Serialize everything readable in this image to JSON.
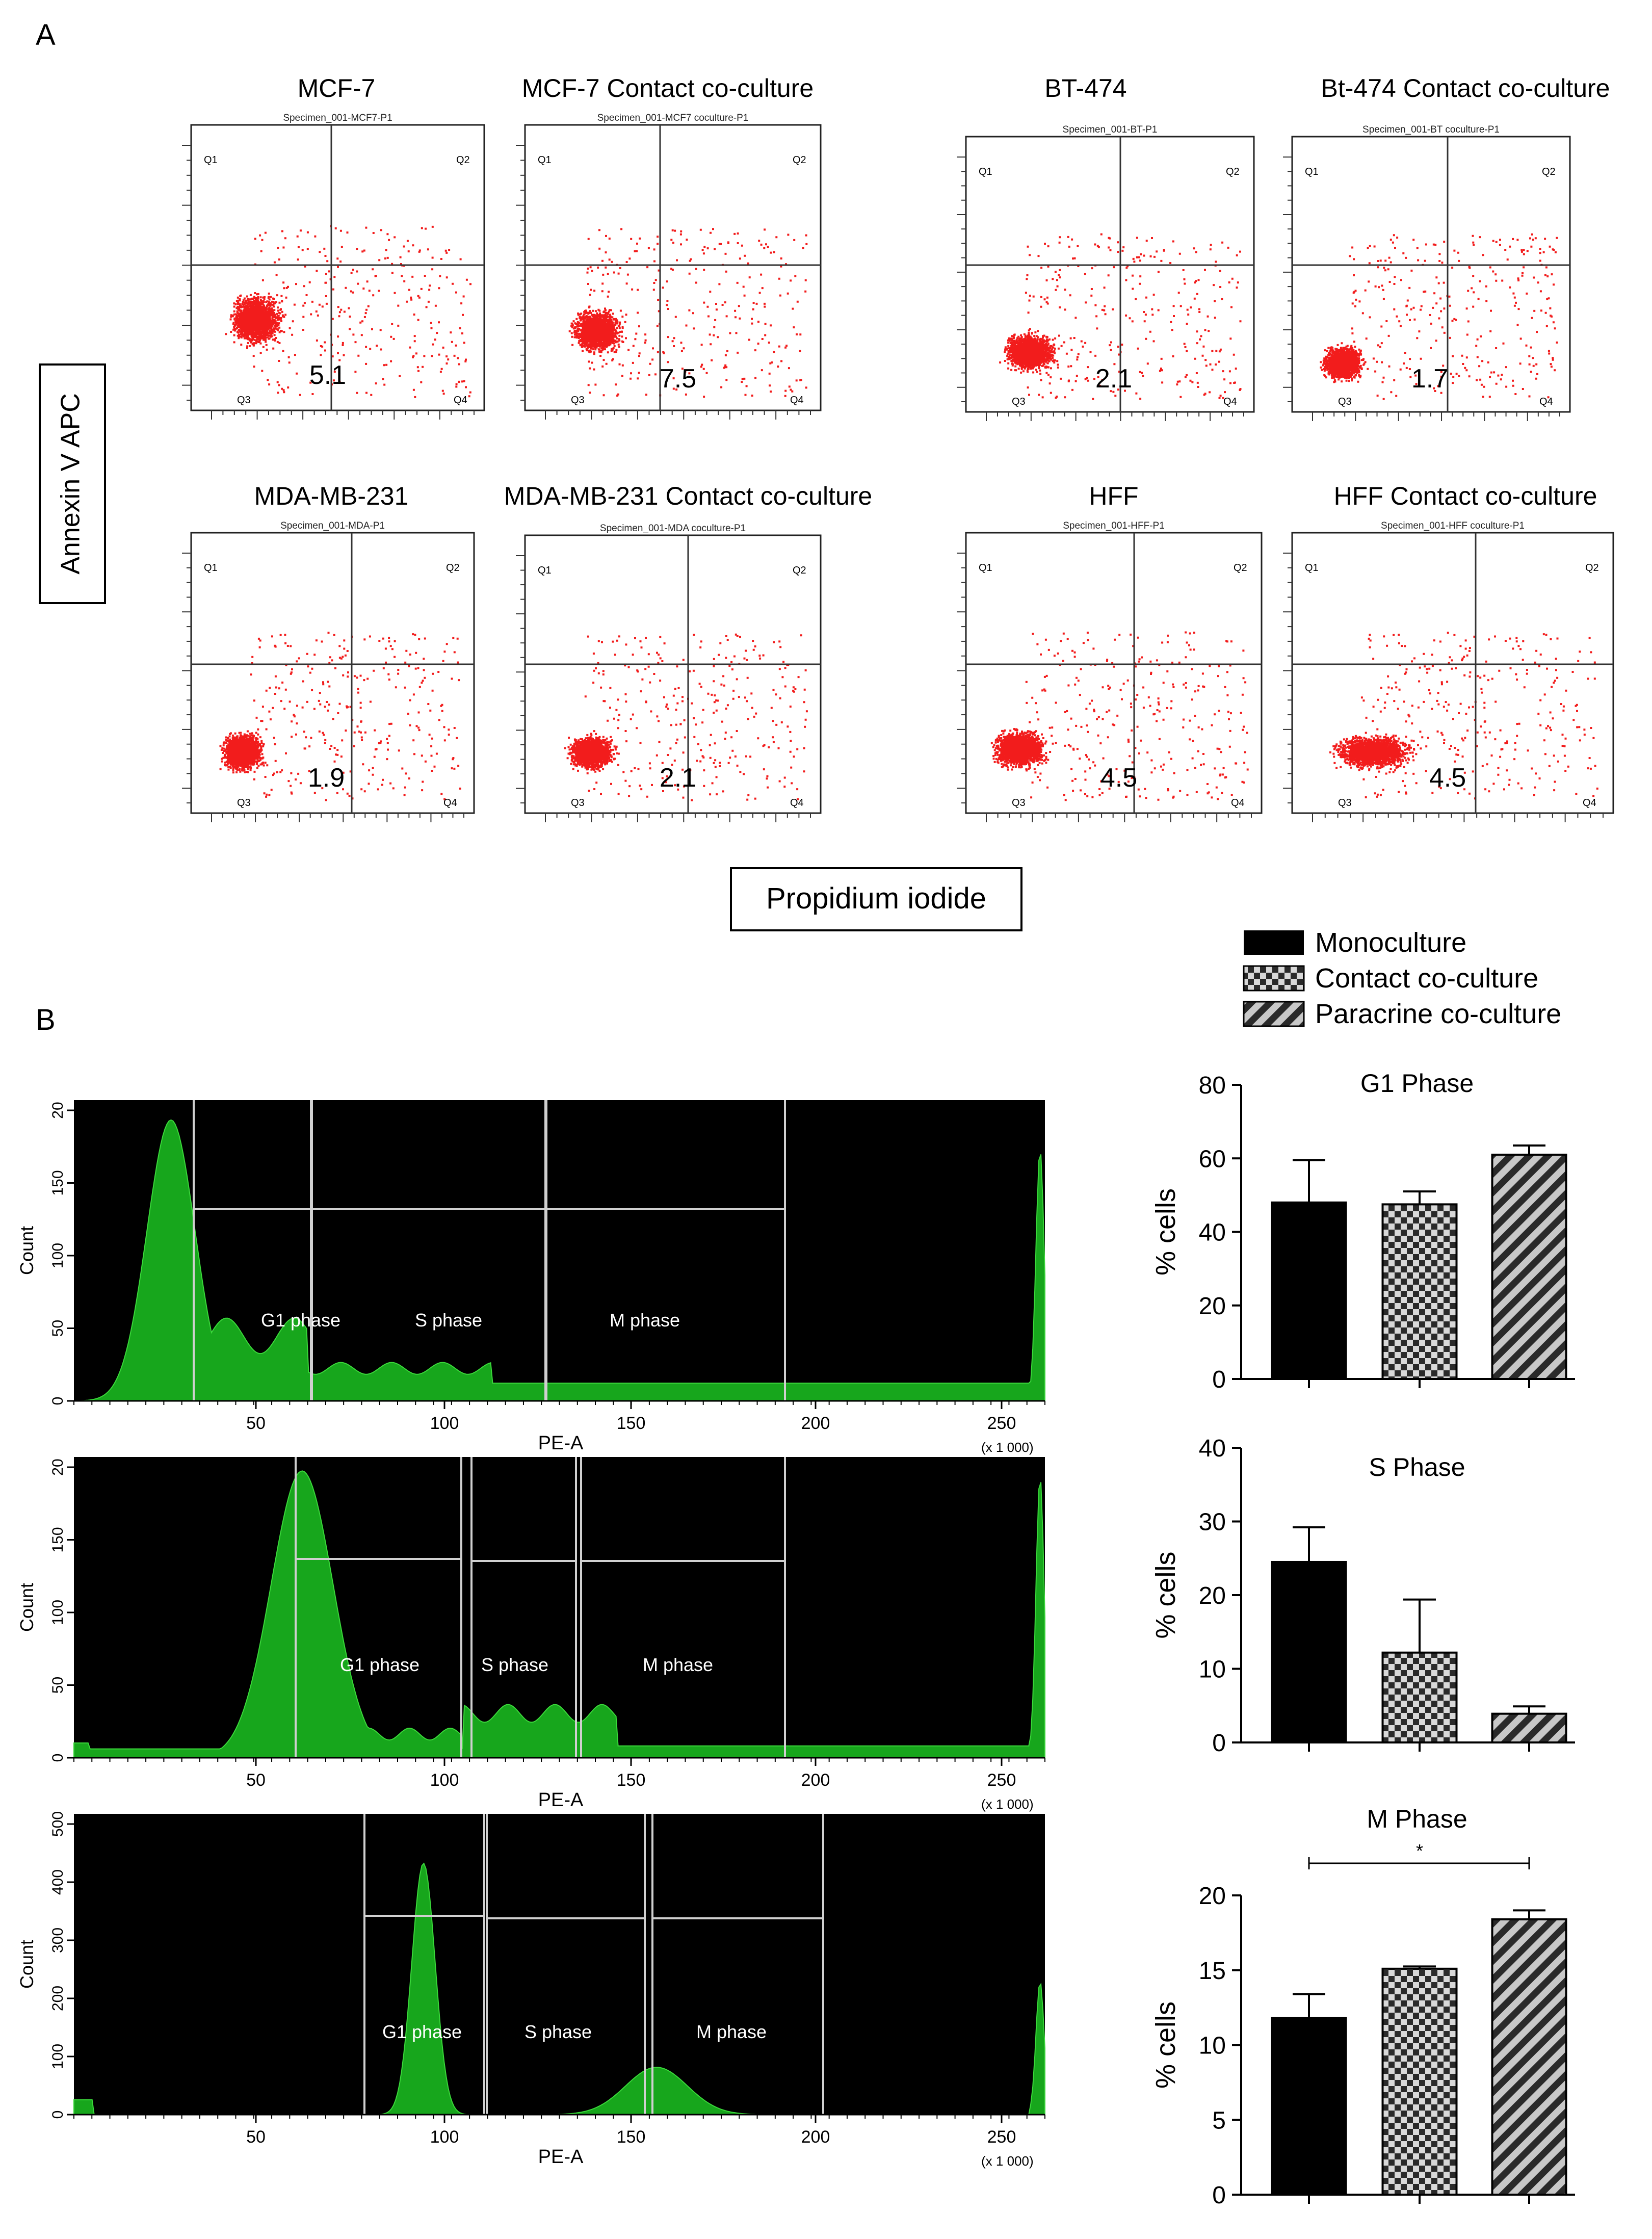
{
  "panel_a": {
    "label": "A",
    "y_axis_label": "Annexin V APC",
    "x_axis_label": "Propidium iodide",
    "quadrant_labels": [
      "Q1",
      "Q2",
      "Q3",
      "Q4"
    ],
    "plots": [
      {
        "title": "MCF-7",
        "specimen": "Specimen_001-MCF7-P1",
        "value": "5.1"
      },
      {
        "title": "MCF-7 Contact co-culture",
        "specimen": "Specimen_001-MCF7 coculture-P1",
        "value": "7.5"
      },
      {
        "title": "BT-474",
        "specimen": "Specimen_001-BT-P1",
        "value": "2.1"
      },
      {
        "title": "Bt-474 Contact co-culture",
        "specimen": "Specimen_001-BT coculture-P1",
        "value": "1.7"
      },
      {
        "title": "MDA-MB-231",
        "specimen": "Specimen_001-MDA-P1",
        "value": "1.9"
      },
      {
        "title": "MDA-MB-231 Contact co-culture",
        "specimen": "Specimen_001-MDA coculture-P1",
        "value": "2.1"
      },
      {
        "title": "HFF",
        "specimen": "Specimen_001-HFF-P1",
        "value": "4.5"
      },
      {
        "title": "HFF Contact co-culture",
        "specimen": "Specimen_001-HFF coculture-P1",
        "value": "4.5"
      }
    ]
  },
  "panel_b": {
    "label": "B",
    "legend": [
      "Monoculture",
      "Contact co-culture",
      "Paracrine co-culture"
    ],
    "histograms": {
      "x_label": "PE-A",
      "y_label": "Count",
      "scale_note": "(x 1 000)",
      "x_ticks": [
        "50",
        "100",
        "150",
        "200",
        "250"
      ],
      "phase_labels": [
        "G1 phase",
        "S phase",
        "M phase"
      ],
      "y_ticks": [
        [
          "0",
          "50",
          "100",
          "150",
          "20"
        ],
        [
          "0",
          "50",
          "100",
          "150",
          "20"
        ],
        [
          "0",
          "100",
          "200",
          "300",
          "400",
          "500"
        ]
      ]
    },
    "significance_mark": "*"
  },
  "chart_data": [
    {
      "type": "bar",
      "title": "G1 Phase",
      "ylabel": "% cells",
      "ylim": [
        0,
        80
      ],
      "yticks": [
        0,
        20,
        40,
        60,
        80
      ],
      "categories": [
        "Monoculture",
        "Contact co-culture",
        "Paracrine co-culture"
      ],
      "values": [
        48,
        47.5,
        61
      ],
      "errors": [
        11.5,
        3.5,
        2.5
      ]
    },
    {
      "type": "bar",
      "title": "S Phase",
      "ylabel": "% cells",
      "ylim": [
        0,
        40
      ],
      "yticks": [
        0,
        10,
        20,
        30,
        40
      ],
      "categories": [
        "Monoculture",
        "Contact co-culture",
        "Paracrine co-culture"
      ],
      "values": [
        24.5,
        12.2,
        3.9
      ],
      "errors": [
        4.7,
        7.2,
        1.0
      ]
    },
    {
      "type": "bar",
      "title": "M Phase",
      "ylabel": "% cells",
      "ylim": [
        0,
        20
      ],
      "yticks": [
        0,
        5,
        10,
        15,
        20
      ],
      "categories": [
        "Monoculture",
        "Contact co-culture",
        "Paracrine co-culture"
      ],
      "values": [
        11.8,
        15.1,
        18.4
      ],
      "errors": [
        1.6,
        0.15,
        0.6
      ]
    }
  ]
}
